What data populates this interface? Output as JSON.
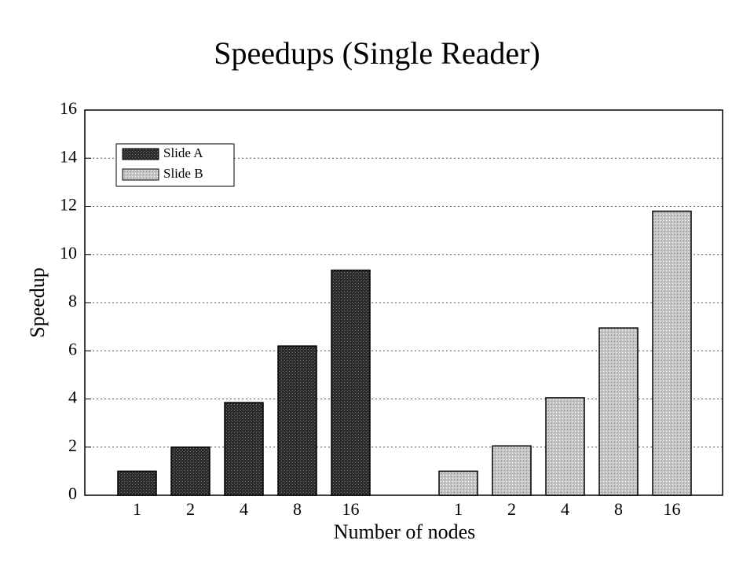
{
  "chart_data": {
    "type": "bar",
    "title": "Speedups (Single Reader)",
    "x_label": "Number of nodes",
    "y_label": "Speedup",
    "categories": [
      "1",
      "2",
      "4",
      "8",
      "16"
    ],
    "series": [
      {
        "name": "Slide A",
        "color": "#2b2b2b",
        "values": [
          1,
          2,
          3.85,
          6.2,
          9.35
        ]
      },
      {
        "name": "Slide B",
        "color": "#c4c4c4",
        "values": [
          1,
          2.05,
          4.05,
          6.95,
          11.8
        ]
      }
    ],
    "ylim": [
      0,
      16
    ],
    "yticks": [
      0,
      2,
      4,
      6,
      8,
      10,
      12,
      14,
      16
    ],
    "grid": true,
    "legend": "upper left"
  }
}
